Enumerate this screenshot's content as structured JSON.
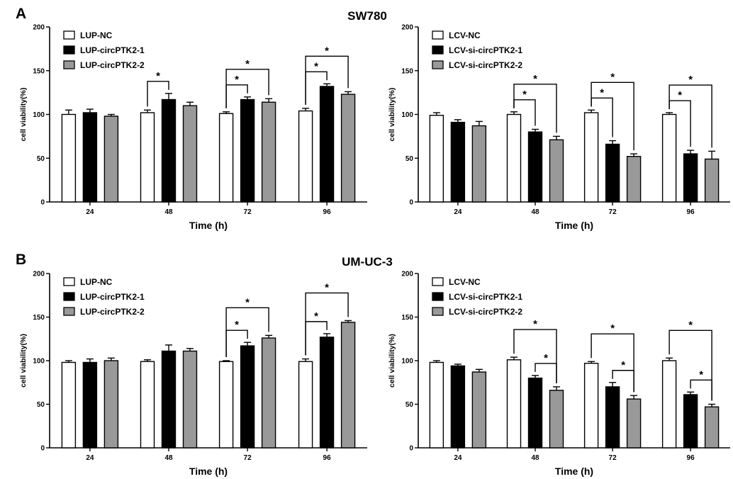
{
  "panels": [
    {
      "letter": "A",
      "title": "SW780"
    },
    {
      "letter": "B",
      "title": "UM-UC-3"
    }
  ],
  "colors": {
    "nc": "#ffffff",
    "g1": "#000000",
    "g2": "#999999",
    "stroke": "#000000"
  },
  "chart_data": [
    {
      "type": "bar",
      "panel": "A",
      "xlabel": "Time (h)",
      "ylabel": "cell viability(%)",
      "ylim": [
        0,
        200
      ],
      "yticks": [
        0,
        50,
        100,
        150,
        200
      ],
      "categories": [
        "24",
        "48",
        "72",
        "96"
      ],
      "legend_position": "top-left",
      "series": [
        {
          "name": "LUP-NC",
          "color_key": "nc",
          "values": [
            100,
            102,
            101,
            104
          ],
          "errors": [
            5,
            3,
            2,
            3
          ]
        },
        {
          "name": "LUP-circPTK2-1",
          "color_key": "g1",
          "values": [
            102,
            117,
            117,
            132
          ],
          "errors": [
            4,
            7,
            3,
            3
          ]
        },
        {
          "name": "LUP-circPTK2-2",
          "color_key": "g2",
          "values": [
            98,
            110,
            114,
            123
          ],
          "errors": [
            2,
            4,
            4,
            3
          ]
        }
      ],
      "annotations": [
        {
          "category": 1,
          "from": 0,
          "to": 1,
          "label": "*",
          "level": 1
        },
        {
          "category": 2,
          "from": 0,
          "to": 1,
          "label": "*",
          "level": 1
        },
        {
          "category": 2,
          "from": 0,
          "to": 2,
          "label": "*",
          "level": 2
        },
        {
          "category": 3,
          "from": 0,
          "to": 1,
          "label": "*",
          "level": 1
        },
        {
          "category": 3,
          "from": 0,
          "to": 2,
          "label": "*",
          "level": 2
        }
      ]
    },
    {
      "type": "bar",
      "panel": "A",
      "xlabel": "Time (h)",
      "ylabel": "cell viability(%)",
      "ylim": [
        0,
        200
      ],
      "yticks": [
        0,
        50,
        100,
        150,
        200
      ],
      "categories": [
        "24",
        "48",
        "72",
        "96"
      ],
      "legend_position": "top-left",
      "series": [
        {
          "name": "LCV-NC",
          "color_key": "nc",
          "values": [
            99,
            100,
            102,
            100
          ],
          "errors": [
            3,
            3,
            3,
            2
          ]
        },
        {
          "name": "LCV-si-circPTK2-1",
          "color_key": "g1",
          "values": [
            91,
            80,
            66,
            55
          ],
          "errors": [
            3,
            3,
            4,
            4
          ]
        },
        {
          "name": "LCV-si-circPTK2-2",
          "color_key": "g2",
          "values": [
            87,
            71,
            52,
            49
          ],
          "errors": [
            5,
            4,
            3,
            9
          ]
        }
      ],
      "annotations": [
        {
          "category": 1,
          "from": 0,
          "to": 1,
          "label": "*",
          "level": 1
        },
        {
          "category": 1,
          "from": 0,
          "to": 2,
          "label": "*",
          "level": 2
        },
        {
          "category": 2,
          "from": 0,
          "to": 1,
          "label": "*",
          "level": 1
        },
        {
          "category": 2,
          "from": 0,
          "to": 2,
          "label": "*",
          "level": 2
        },
        {
          "category": 3,
          "from": 0,
          "to": 1,
          "label": "*",
          "level": 1
        },
        {
          "category": 3,
          "from": 0,
          "to": 2,
          "label": "*",
          "level": 2
        }
      ]
    },
    {
      "type": "bar",
      "panel": "B",
      "xlabel": "Time (h)",
      "ylabel": "cell viability(%)",
      "ylim": [
        0,
        200
      ],
      "yticks": [
        0,
        50,
        100,
        150,
        200
      ],
      "categories": [
        "24",
        "48",
        "72",
        "96"
      ],
      "legend_position": "top-left",
      "series": [
        {
          "name": "LUP-NC",
          "color_key": "nc",
          "values": [
            98,
            99,
            99,
            99
          ],
          "errors": [
            2,
            2,
            1,
            3
          ]
        },
        {
          "name": "LUP-circPTK2-1",
          "color_key": "g1",
          "values": [
            98,
            111,
            117,
            127
          ],
          "errors": [
            4,
            7,
            4,
            4
          ]
        },
        {
          "name": "LUP-circPTK2-2",
          "color_key": "g2",
          "values": [
            100,
            111,
            126,
            144
          ],
          "errors": [
            3,
            3,
            3,
            2
          ]
        }
      ],
      "annotations": [
        {
          "category": 2,
          "from": 0,
          "to": 1,
          "label": "*",
          "level": 1
        },
        {
          "category": 2,
          "from": 0,
          "to": 2,
          "label": "*",
          "level": 2
        },
        {
          "category": 3,
          "from": 0,
          "to": 1,
          "label": "*",
          "level": 1
        },
        {
          "category": 3,
          "from": 0,
          "to": 2,
          "label": "*",
          "level": 2
        }
      ]
    },
    {
      "type": "bar",
      "panel": "B",
      "xlabel": "Time (h)",
      "ylabel": "cell viability(%)",
      "ylim": [
        0,
        200
      ],
      "yticks": [
        0,
        50,
        100,
        150,
        200
      ],
      "categories": [
        "24",
        "48",
        "72",
        "96"
      ],
      "legend_position": "top-left",
      "series": [
        {
          "name": "LCV-NC",
          "color_key": "nc",
          "values": [
            98,
            101,
            97,
            100
          ],
          "errors": [
            2,
            3,
            2,
            3
          ]
        },
        {
          "name": "LCV-si-circPTK2-1",
          "color_key": "g1",
          "values": [
            94,
            80,
            70,
            61
          ],
          "errors": [
            2,
            3,
            5,
            3
          ]
        },
        {
          "name": "LCV-si-circPTK2-2",
          "color_key": "g2",
          "values": [
            87,
            66,
            56,
            47
          ],
          "errors": [
            3,
            4,
            4,
            3
          ]
        }
      ],
      "annotations": [
        {
          "category": 1,
          "from": 1,
          "to": 2,
          "label": "*",
          "level": 1
        },
        {
          "category": 1,
          "from": 0,
          "to": 2,
          "label": "*",
          "level": 2
        },
        {
          "category": 2,
          "from": 1,
          "to": 2,
          "label": "*",
          "level": 1
        },
        {
          "category": 2,
          "from": 0,
          "to": 2,
          "label": "*",
          "level": 2
        },
        {
          "category": 3,
          "from": 1,
          "to": 2,
          "label": "*",
          "level": 1
        },
        {
          "category": 3,
          "from": 0,
          "to": 2,
          "label": "*",
          "level": 2
        }
      ]
    }
  ]
}
